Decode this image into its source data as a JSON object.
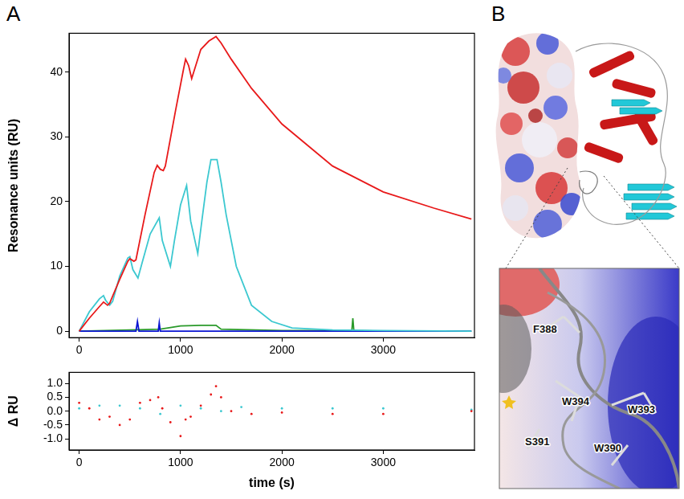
{
  "chart_data": [
    {
      "type": "line",
      "y_label": "Resonance units (RU)",
      "xlim": [
        -100,
        3900
      ],
      "xticks": [
        0,
        1000,
        2000,
        3000
      ],
      "ylim": [
        -1,
        46
      ],
      "yticks": [
        0,
        10,
        20,
        30,
        40
      ],
      "grid": false,
      "series": [
        {
          "color": "#e8191a",
          "type": "line",
          "x": [
            0,
            100,
            200,
            240,
            280,
            300,
            400,
            480,
            500,
            540,
            560,
            650,
            740,
            770,
            800,
            830,
            850,
            950,
            1030,
            1050,
            1080,
            1110,
            1130,
            1200,
            1280,
            1350,
            1400,
            1500,
            1700,
            2000,
            2500,
            3000,
            3500,
            3870
          ],
          "values": [
            0,
            2,
            3.8,
            4.5,
            4.0,
            4.3,
            8,
            10.8,
            11.2,
            10.8,
            11,
            18,
            24.5,
            25.6,
            25,
            24.8,
            25.5,
            34,
            40.5,
            42,
            41,
            39,
            40,
            43.5,
            44.8,
            45.5,
            44.5,
            42,
            37.5,
            32,
            25.5,
            21.5,
            19,
            17.3
          ]
        },
        {
          "color": "#3cc8d0",
          "type": "line",
          "x": [
            0,
            100,
            200,
            240,
            260,
            300,
            330,
            400,
            480,
            500,
            530,
            580,
            620,
            700,
            790,
            820,
            900,
            940,
            1000,
            1060,
            1100,
            1170,
            1210,
            1260,
            1300,
            1360,
            1400,
            1450,
            1550,
            1700,
            1900,
            2100,
            2500,
            3000,
            3870
          ],
          "values": [
            0,
            3,
            5,
            5.5,
            4.8,
            4.0,
            4.6,
            8.5,
            11.3,
            11.5,
            9.5,
            8.2,
            10.5,
            15,
            17.5,
            14,
            10,
            14,
            19.5,
            22.5,
            17,
            12,
            17,
            23,
            26.5,
            26.5,
            23,
            18,
            10,
            4,
            1.5,
            0.5,
            0.2,
            0.1,
            0
          ]
        },
        {
          "color": "#0a14d2",
          "type": "line",
          "x": [
            0,
            200,
            560,
            575,
            590,
            700,
            780,
            790,
            800,
            900,
            1200,
            1600,
            2000,
            3000,
            3870
          ],
          "values": [
            0,
            0,
            0,
            1.5,
            0,
            0,
            0,
            1.3,
            0,
            0,
            0,
            0,
            0,
            0,
            0
          ]
        },
        {
          "color": "#2a9a2a",
          "type": "line",
          "x": [
            0,
            500,
            800,
            1000,
            1200,
            1350,
            1400,
            2000,
            2690,
            2700,
            2710,
            3000,
            3870
          ],
          "values": [
            0,
            0.2,
            0.3,
            0.8,
            0.9,
            0.9,
            0.3,
            0.1,
            0.1,
            2.0,
            0.1,
            0,
            0
          ]
        }
      ]
    },
    {
      "type": "scatter",
      "x_label": "time (s)",
      "y_label": "Δ RU",
      "xlim": [
        -100,
        3900
      ],
      "xticks": [
        0,
        1000,
        2000,
        3000
      ],
      "ylim": [
        -1.4,
        1.4
      ],
      "yticks": [
        {
          "value": -1,
          "label": "-1.0"
        },
        {
          "value": -0.5,
          "label": "-0.5"
        },
        {
          "value": 0,
          "label": "0.0"
        },
        {
          "value": 0.5,
          "label": "0.5"
        },
        {
          "value": 1,
          "label": "1.0"
        }
      ],
      "grid": false,
      "series": [
        {
          "color": "#e8191a",
          "type": "scatter",
          "marker": "dot",
          "x": [
            0,
            100,
            200,
            300,
            400,
            500,
            600,
            700,
            780,
            820,
            900,
            1000,
            1050,
            1100,
            1200,
            1300,
            1350,
            1400,
            1500,
            1700,
            2000,
            2500,
            3000,
            3870
          ],
          "values": [
            0.3,
            0.1,
            -0.3,
            -0.2,
            -0.5,
            -0.3,
            0.3,
            0.4,
            0.5,
            0.1,
            -0.4,
            -0.9,
            -0.3,
            -0.2,
            0.2,
            0.6,
            0.9,
            0.5,
            0,
            -0.1,
            -0.05,
            -0.1,
            -0.1,
            0
          ]
        },
        {
          "color": "#3cc8d0",
          "type": "scatter",
          "marker": "dot",
          "x": [
            0,
            200,
            400,
            600,
            800,
            1000,
            1200,
            1400,
            1600,
            2000,
            2500,
            3000,
            3870
          ],
          "values": [
            0.1,
            0.2,
            0.2,
            0.1,
            -0.1,
            0.2,
            0.1,
            0,
            0.15,
            0.1,
            0.1,
            0.1,
            0.05
          ]
        }
      ]
    }
  ],
  "panel_labels": [
    "A",
    "B"
  ],
  "structure_labels": [
    "F388",
    "W394",
    "S391",
    "W390",
    "W393"
  ]
}
